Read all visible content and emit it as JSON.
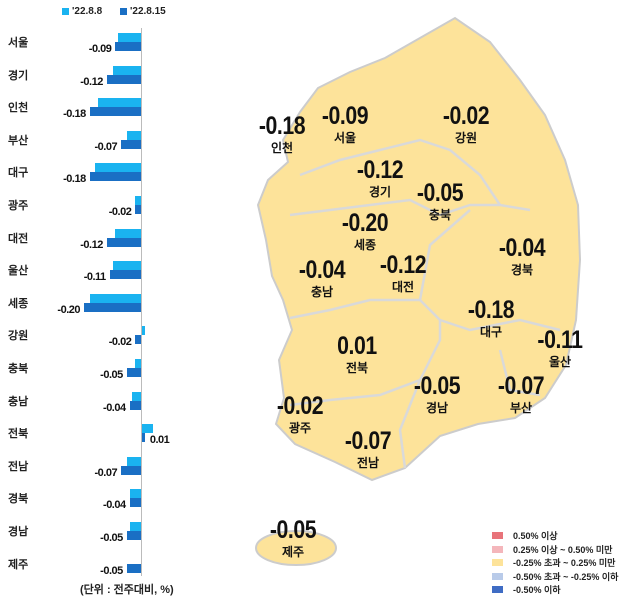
{
  "chart_data": [
    {
      "type": "bar",
      "orientation": "horizontal",
      "categories": [
        "서울",
        "경기",
        "인천",
        "부산",
        "대구",
        "광주",
        "대전",
        "울산",
        "세종",
        "강원",
        "충북",
        "충남",
        "전북",
        "전남",
        "경북",
        "경남",
        "제주"
      ],
      "series": [
        {
          "name": "'22.8.8",
          "color": "#1ab3f0",
          "values": [
            -0.08,
            -0.1,
            -0.15,
            -0.05,
            -0.16,
            -0.02,
            -0.09,
            -0.1,
            -0.18,
            0.01,
            -0.02,
            -0.03,
            0.04,
            -0.05,
            -0.04,
            -0.04,
            0.0
          ]
        },
        {
          "name": "'22.8.15",
          "color": "#1a6fc4",
          "values": [
            -0.09,
            -0.12,
            -0.18,
            -0.07,
            -0.18,
            -0.02,
            -0.12,
            -0.11,
            -0.2,
            -0.02,
            -0.05,
            -0.04,
            0.01,
            -0.07,
            -0.04,
            -0.05,
            -0.05
          ]
        }
      ],
      "data_labels": [
        "-0.09",
        "-0.12",
        "-0.18",
        "-0.07",
        "-0.18",
        "-0.02",
        "-0.12",
        "-0.11",
        "-0.20",
        "-0.02",
        "-0.05",
        "-0.04",
        "0.01",
        "-0.07",
        "-0.04",
        "-0.05",
        "-0.05"
      ],
      "unit_note": "(단위 : 전주대비, %)",
      "legend": "top"
    },
    {
      "type": "map",
      "regions": [
        {
          "name": "인천",
          "value": "-0.18"
        },
        {
          "name": "서울",
          "value": "-0.09"
        },
        {
          "name": "강원",
          "value": "-0.02"
        },
        {
          "name": "경기",
          "value": "-0.12"
        },
        {
          "name": "충북",
          "value": "-0.05"
        },
        {
          "name": "세종",
          "value": "-0.20"
        },
        {
          "name": "경북",
          "value": "-0.04"
        },
        {
          "name": "충남",
          "value": "-0.04"
        },
        {
          "name": "대전",
          "value": "-0.12"
        },
        {
          "name": "대구",
          "value": "-0.18"
        },
        {
          "name": "울산",
          "value": "-0.11"
        },
        {
          "name": "전북",
          "value": "0.01"
        },
        {
          "name": "경남",
          "value": "-0.05"
        },
        {
          "name": "부산",
          "value": "-0.07"
        },
        {
          "name": "광주",
          "value": "-0.02"
        },
        {
          "name": "전남",
          "value": "-0.07"
        },
        {
          "name": "제주",
          "value": "-0.05"
        }
      ],
      "legend": [
        {
          "label": "0.50% 이상",
          "color": "#e8737a"
        },
        {
          "label": "0.25% 이상 ~ 0.50% 미만",
          "color": "#f4b6bb"
        },
        {
          "label": "-0.25% 초과 ~ 0.25% 미만",
          "color": "#fde39a"
        },
        {
          "label": "-0.50% 초과 ~ -0.25% 이하",
          "color": "#b9cbe9"
        },
        {
          "label": "-0.50% 이하",
          "color": "#3f6cc4"
        }
      ],
      "fill_color": "#fde39a"
    }
  ]
}
